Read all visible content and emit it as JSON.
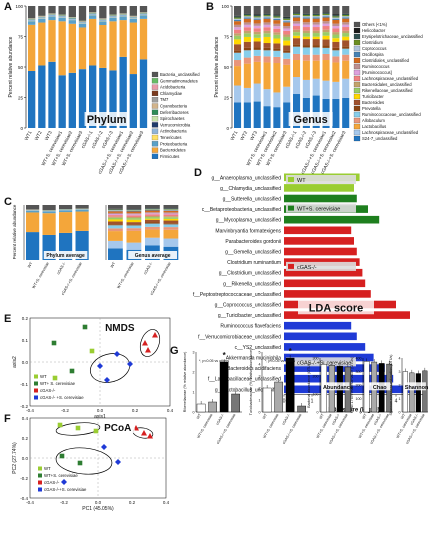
{
  "panels": {
    "A": {
      "label": "A",
      "ylabel": "Percent relative abundance",
      "overlay": "Phylum",
      "samples": [
        "WT1",
        "WT2",
        "WT3",
        "WT+S. cerevisiae1",
        "WT+S. cerevisiae2",
        "WT+S. cerevisiae3",
        "cGAS-/-1",
        "cGAS-/-2",
        "cGAS-/-3",
        "cGAS-/-+S. cerevisiae1",
        "cGAS-/-+S. cerevisiae2",
        "cGAS-/-+S. cerevisiae3"
      ],
      "legend": [
        "Bacteria_unclassified",
        "Gemmatimonadetes",
        "Acidobacteria",
        "Chlamydiae",
        "TM7",
        "Cyanobacteria",
        "Deferribacteres",
        "Spirochaetes",
        "Verrucomicrobia",
        "Actinobacteria",
        "Tenericutes",
        "Proteobacteria",
        "Bacteroidetes",
        "Firmicutes"
      ],
      "colors": [
        "#555555",
        "#66bb66",
        "#e89aa8",
        "#7a3b20",
        "#9e9e9e",
        "#d2b48c",
        "#2e8b57",
        "#c6e2a8",
        "#1f3a6b",
        "#8fb4d8",
        "#ffe066",
        "#5aa0c8",
        "#f4a63a",
        "#1f74c0"
      ],
      "values": [
        [
          10,
          0.2,
          0.1,
          0.1,
          0.2,
          0.2,
          0.3,
          0.1,
          0.1,
          1,
          0.2,
          3,
          38,
          47
        ],
        [
          8,
          0.2,
          0.1,
          0.1,
          0.2,
          0.2,
          0.3,
          0.1,
          0.1,
          1,
          0.2,
          3,
          35,
          51
        ],
        [
          6,
          0.2,
          0.1,
          0.1,
          0.2,
          0.2,
          0.3,
          0.1,
          0.1,
          1,
          0.2,
          3,
          34,
          54
        ],
        [
          7,
          0.2,
          0.1,
          0.1,
          0.2,
          0.2,
          0.3,
          0.1,
          0.1,
          1,
          0.2,
          3,
          44,
          43
        ],
        [
          9,
          0.2,
          0.1,
          0.1,
          0.2,
          0.2,
          0.3,
          0.1,
          0.1,
          1,
          0.2,
          3,
          40,
          45
        ],
        [
          12,
          0.2,
          0.1,
          0.1,
          0.2,
          0.2,
          0.3,
          0.1,
          0.1,
          1,
          0.2,
          3,
          34,
          48
        ],
        [
          5,
          0.2,
          0.1,
          0.1,
          0.2,
          0.2,
          0.3,
          0.1,
          0.1,
          1,
          0.2,
          3,
          38,
          51
        ],
        [
          10,
          0.2,
          0.1,
          0.1,
          0.2,
          0.2,
          0.3,
          0.1,
          0.1,
          1,
          0.2,
          3,
          35,
          49
        ],
        [
          7,
          0.2,
          0.1,
          0.1,
          0.2,
          0.2,
          0.3,
          0.1,
          0.1,
          1,
          0.2,
          3,
          40,
          47
        ],
        [
          6,
          0.2,
          0.1,
          0.1,
          0.2,
          0.2,
          0.3,
          0.1,
          0.1,
          1,
          0.2,
          3,
          30,
          58
        ],
        [
          8,
          0.2,
          0.1,
          0.1,
          0.2,
          0.2,
          0.3,
          0.1,
          0.1,
          1,
          0.2,
          3,
          42,
          44
        ],
        [
          5,
          0.2,
          0.1,
          0.1,
          0.2,
          0.2,
          0.3,
          0.1,
          0.1,
          1,
          0.2,
          3,
          33,
          56
        ]
      ]
    },
    "B": {
      "label": "B",
      "ylabel": "Percent relative abundance",
      "overlay": "Genus",
      "samples": [
        "WT1",
        "WT2",
        "WT3",
        "WT+S. cerevisiae1",
        "WT+S. cerevisiae2",
        "WT+S. cerevisiae3",
        "cGAS-/-1",
        "cGAS-/-2",
        "cGAS-/-3",
        "cGAS-/-+S. cerevisiae1",
        "cGAS-/-+S. cerevisiae2",
        "cGAS-/-+S. cerevisiae3"
      ],
      "legend": [
        "Others (<1%)",
        "Helicobacter",
        "Erysipelotrichaceae_unclassified",
        "Clostridium",
        "Coprococcus",
        "Oscillospira",
        "Clostridiales_unclassified",
        "Ruminococcus",
        "[Ruminococcus]",
        "Lachnospiraceae_unclassified",
        "Bacteroidales_unclassified",
        "Rikenellaceae_unclassified",
        "Turicibacter",
        "Bacteroides",
        "Prevotella",
        "Ruminococcaceae_unclassified",
        "Allobaculum",
        "Lactobacillus",
        "Lachnospiraceae_unclassified",
        "S24-7_unclassified"
      ],
      "colors": [
        "#555555",
        "#1a1a1a",
        "#2f4f4f",
        "#6b8e23",
        "#b0c4de",
        "#4682b4",
        "#d2691e",
        "#bc8f8f",
        "#dda0dd",
        "#f08080",
        "#c2a36b",
        "#99cc66",
        "#ffd700",
        "#a0522d",
        "#8b4513",
        "#87ceeb",
        "#e9967a",
        "#f4a63a",
        "#a6c8ec",
        "#1f74c0"
      ],
      "values": [
        [
          8,
          0.5,
          1,
          1,
          1,
          1,
          3,
          2,
          2,
          3,
          2,
          3,
          4,
          5,
          2,
          6,
          5,
          16,
          14,
          21
        ],
        [
          6,
          0.5,
          1,
          1,
          1,
          1,
          3,
          2,
          2,
          3,
          2,
          3,
          4,
          5,
          2,
          6,
          5,
          20,
          12,
          21
        ],
        [
          7,
          0.5,
          1,
          1,
          1,
          1,
          3,
          2,
          2,
          3,
          2,
          3,
          3,
          5,
          2,
          5,
          5,
          18,
          15,
          22
        ],
        [
          6,
          0.5,
          1,
          1,
          1,
          1,
          3,
          2,
          2,
          3,
          2,
          3,
          5,
          4,
          2,
          5,
          5,
          22,
          14,
          18
        ],
        [
          7,
          0.5,
          1,
          1,
          1,
          1,
          3,
          2,
          2,
          3,
          2,
          3,
          4,
          4,
          2,
          5,
          5,
          24,
          12,
          17
        ],
        [
          9,
          0.5,
          1,
          1,
          1,
          1,
          3,
          2,
          2,
          3,
          2,
          3,
          4,
          4,
          2,
          5,
          5,
          18,
          13,
          21
        ],
        [
          5,
          0.5,
          1,
          1,
          1,
          1,
          3,
          2,
          2,
          3,
          2,
          3,
          2,
          5,
          2,
          6,
          5,
          14,
          14,
          28
        ],
        [
          6,
          0.5,
          1,
          1,
          1,
          1,
          3,
          2,
          2,
          3,
          2,
          3,
          2,
          5,
          2,
          6,
          5,
          16,
          15,
          25
        ],
        [
          6,
          0.5,
          1,
          1,
          1,
          1,
          3,
          2,
          2,
          3,
          2,
          3,
          2,
          5,
          2,
          6,
          5,
          15,
          14,
          27
        ],
        [
          5,
          0.5,
          1,
          1,
          1,
          1,
          3,
          2,
          2,
          3,
          2,
          3,
          3,
          5,
          2,
          5,
          5,
          17,
          15,
          24
        ],
        [
          7,
          0.5,
          1,
          1,
          1,
          1,
          3,
          2,
          2,
          3,
          2,
          3,
          3,
          5,
          2,
          5,
          5,
          16,
          14,
          24
        ],
        [
          6,
          0.5,
          1,
          1,
          1,
          1,
          3,
          2,
          2,
          3,
          2,
          3,
          3,
          5,
          2,
          5,
          5,
          15,
          16,
          25
        ]
      ]
    },
    "C": {
      "label": "C",
      "ylabel": "Percent relative abundance",
      "groups": [
        "WT",
        "WT+S. cerevisiae",
        "cGAS-/-",
        "cGAS-/-+S. cerevisiae"
      ],
      "phylum_label": "Phylum average",
      "genus_label": "Genus average"
    },
    "D": {
      "label": "D",
      "xlabel": "LDA score (log10)",
      "overlay": "LDA score",
      "xticks": [
        "0",
        "1",
        "2",
        "3",
        "4",
        "5"
      ],
      "xmax": 5,
      "bars": [
        {
          "name": "g__Anaeroplasma_unclassified",
          "value": 2.7,
          "group": "WT"
        },
        {
          "name": "g__Chlamydia_unclassified",
          "value": 2.5,
          "group": "WT"
        },
        {
          "name": "g__Sutterella_unclassified",
          "value": 2.6,
          "group": "WT+S. cerevisiae"
        },
        {
          "name": "c__Betaproteobacteria_unclassified",
          "value": 3.0,
          "group": "WT+S. cerevisiae"
        },
        {
          "name": "g__Mycoplasma_unclassified",
          "value": 3.4,
          "group": "WT+S. cerevisiae"
        },
        {
          "name": "Marvinbryantia formatexigens",
          "value": 2.4,
          "group": "cGAS-/-"
        },
        {
          "name": "Parabacteroides gordonii",
          "value": 2.5,
          "group": "cGAS-/-"
        },
        {
          "name": "g__Gemella_unclassified",
          "value": 2.6,
          "group": "cGAS-/-"
        },
        {
          "name": "Clostridium ruminantium",
          "value": 2.7,
          "group": "cGAS-/-"
        },
        {
          "name": "g__Clostridium_unclassified",
          "value": 2.8,
          "group": "cGAS-/-"
        },
        {
          "name": "g__Rikenella_unclassified",
          "value": 2.9,
          "group": "cGAS-/-"
        },
        {
          "name": "f__Peptostreptococcaceae_unclassified",
          "value": 3.1,
          "group": "cGAS-/-"
        },
        {
          "name": "g__Coprococcus_unclassified",
          "value": 4.0,
          "group": "cGAS-/-"
        },
        {
          "name": "g__Turicibacter_unclassified",
          "value": 4.5,
          "group": "cGAS-/-"
        },
        {
          "name": "Ruminococcus flavefaciens",
          "value": 2.4,
          "group": "cGAS-/-+S. cerevisiae"
        },
        {
          "name": "f__Verrucomicrobiaceae_unclassified",
          "value": 2.6,
          "group": "cGAS-/-+S. cerevisiae"
        },
        {
          "name": "c__YS2_unclassified",
          "value": 2.9,
          "group": "cGAS-/-+S. cerevisiae"
        },
        {
          "name": "Akkermansia muciniphila",
          "value": 3.2,
          "group": "cGAS-/-+S. cerevisiae"
        },
        {
          "name": "Bacteroides acidifaciens",
          "value": 3.6,
          "group": "cGAS-/-+S. cerevisiae"
        },
        {
          "name": "f__Lactobacillaceae_unclassified",
          "value": 3.9,
          "group": "cGAS-/-+S. cerevisiae"
        },
        {
          "name": "g__Lactobacillus_unclassified",
          "value": 4.8,
          "group": "cGAS-/-+S. cerevisiae"
        }
      ],
      "group_colors": {
        "WT": "#9acd32",
        "WT+S. cerevisiae": "#1e7f1e",
        "cGAS-/-": "#d62020",
        "cGAS-/-+S. cerevisiae": "#1f3ad6"
      },
      "legend": [
        {
          "label": "WT",
          "group": "WT"
        },
        {
          "label": "WT+S. cerevisiae",
          "group": "WT+S. cerevisiae"
        },
        {
          "label": "cGAS-/-",
          "group": "cGAS-/-"
        },
        {
          "label": "cGAS-/-+S. cerevisiae",
          "group": "cGAS-/-+S. cerevisiae"
        }
      ]
    },
    "E": {
      "label": "E",
      "overlay": "NMDS",
      "xlabel": "axis1",
      "ylabel": "axis2",
      "xticks": [
        "-0.4",
        "-0.2",
        "0.0",
        "0.2",
        "0.4"
      ],
      "yticks": [
        "0.2",
        "0.1",
        "0.0",
        "-0.1",
        "-0.2"
      ],
      "legend": [
        "WT",
        "WT+ S. cerevisiae",
        "cGAS-/-",
        "cGAS-/- +S. cerevisiae"
      ],
      "colors": [
        "#9acd32",
        "#2e7d32",
        "#d62020",
        "#1f3ad6"
      ]
    },
    "F": {
      "label": "F",
      "overlay": "PCoA",
      "xlabel": "PC1 (45.05%)",
      "ylabel": "PC2 (27.74%)",
      "xticks": [
        "-0.4",
        "-0.2",
        "0.0",
        "0.2",
        "0.4"
      ],
      "yticks": [
        "0.4",
        "0.2",
        "0.0",
        "-0.2",
        "-0.4"
      ],
      "legend": [
        "WT",
        "WT+S. cerevisiae",
        "cGAS-/-",
        "cGAS-/-+S. cerevisiae"
      ],
      "colors": [
        "#9acd32",
        "#2e7d32",
        "#d62020",
        "#1f3ad6"
      ]
    },
    "G": {
      "label": "G",
      "charts": [
        {
          "ylabel": "Rikenellaceae (% relative abundance)",
          "note": "*, p<0.05 vs others",
          "star": "*",
          "overlay": "",
          "yticks": [
            "0",
            "1",
            "2",
            "3"
          ],
          "ymax": 3,
          "values": [
            0.4,
            0.5,
            2.5,
            0.9
          ],
          "colors": [
            "#ffffff",
            "#aaaaaa",
            "#000000",
            "#777777"
          ]
        },
        {
          "ylabel": "Turicibacteraceae (% relative abundance)",
          "note": "*, p<0.05 vs others",
          "star": "*",
          "overlay": "",
          "yticks": [
            "0",
            "1",
            "2",
            "3",
            "4",
            "5"
          ],
          "ymax": 5,
          "values": [
            2.0,
            2.5,
            4.5,
            0.5
          ],
          "colors": [
            "#ffffff",
            "#aaaaaa",
            "#000000",
            "#777777"
          ]
        },
        {
          "ylabel": "Bacterial abundance (OTUs)",
          "note": "",
          "star": "",
          "overlay": "Abundance",
          "yticks": [
            "0",
            "100",
            "200",
            "300"
          ],
          "ymax": 300,
          "values": [
            265,
            260,
            255,
            250
          ],
          "colors": [
            "#ffffff",
            "#aaaaaa",
            "#000000",
            "#777777"
          ]
        },
        {
          "ylabel": "Chao 1 richness estimation (OTUs)",
          "note": "",
          "star": "",
          "overlay": "Chao",
          "yticks": [
            "0",
            "100",
            "200",
            "300",
            "400"
          ],
          "ymax": 400,
          "values": [
            375,
            370,
            360,
            355
          ],
          "colors": [
            "#ffffff",
            "#aaaaaa",
            "#000000",
            "#777777"
          ]
        },
        {
          "ylabel": "Shannon evenness estimation (OTUs)",
          "note": "",
          "star": "",
          "overlay": "Shannon",
          "yticks": [
            "0",
            "1",
            "2",
            "3",
            "4"
          ],
          "ymax": 4,
          "values": [
            3.0,
            2.9,
            2.85,
            3.05
          ],
          "colors": [
            "#ffffff",
            "#aaaaaa",
            "#000000",
            "#777777"
          ]
        }
      ],
      "categories": [
        "WT",
        "WT+S. cerevisiae",
        "cGAS-/-",
        "cGAS-/-+S. cerevisiae"
      ]
    }
  }
}
